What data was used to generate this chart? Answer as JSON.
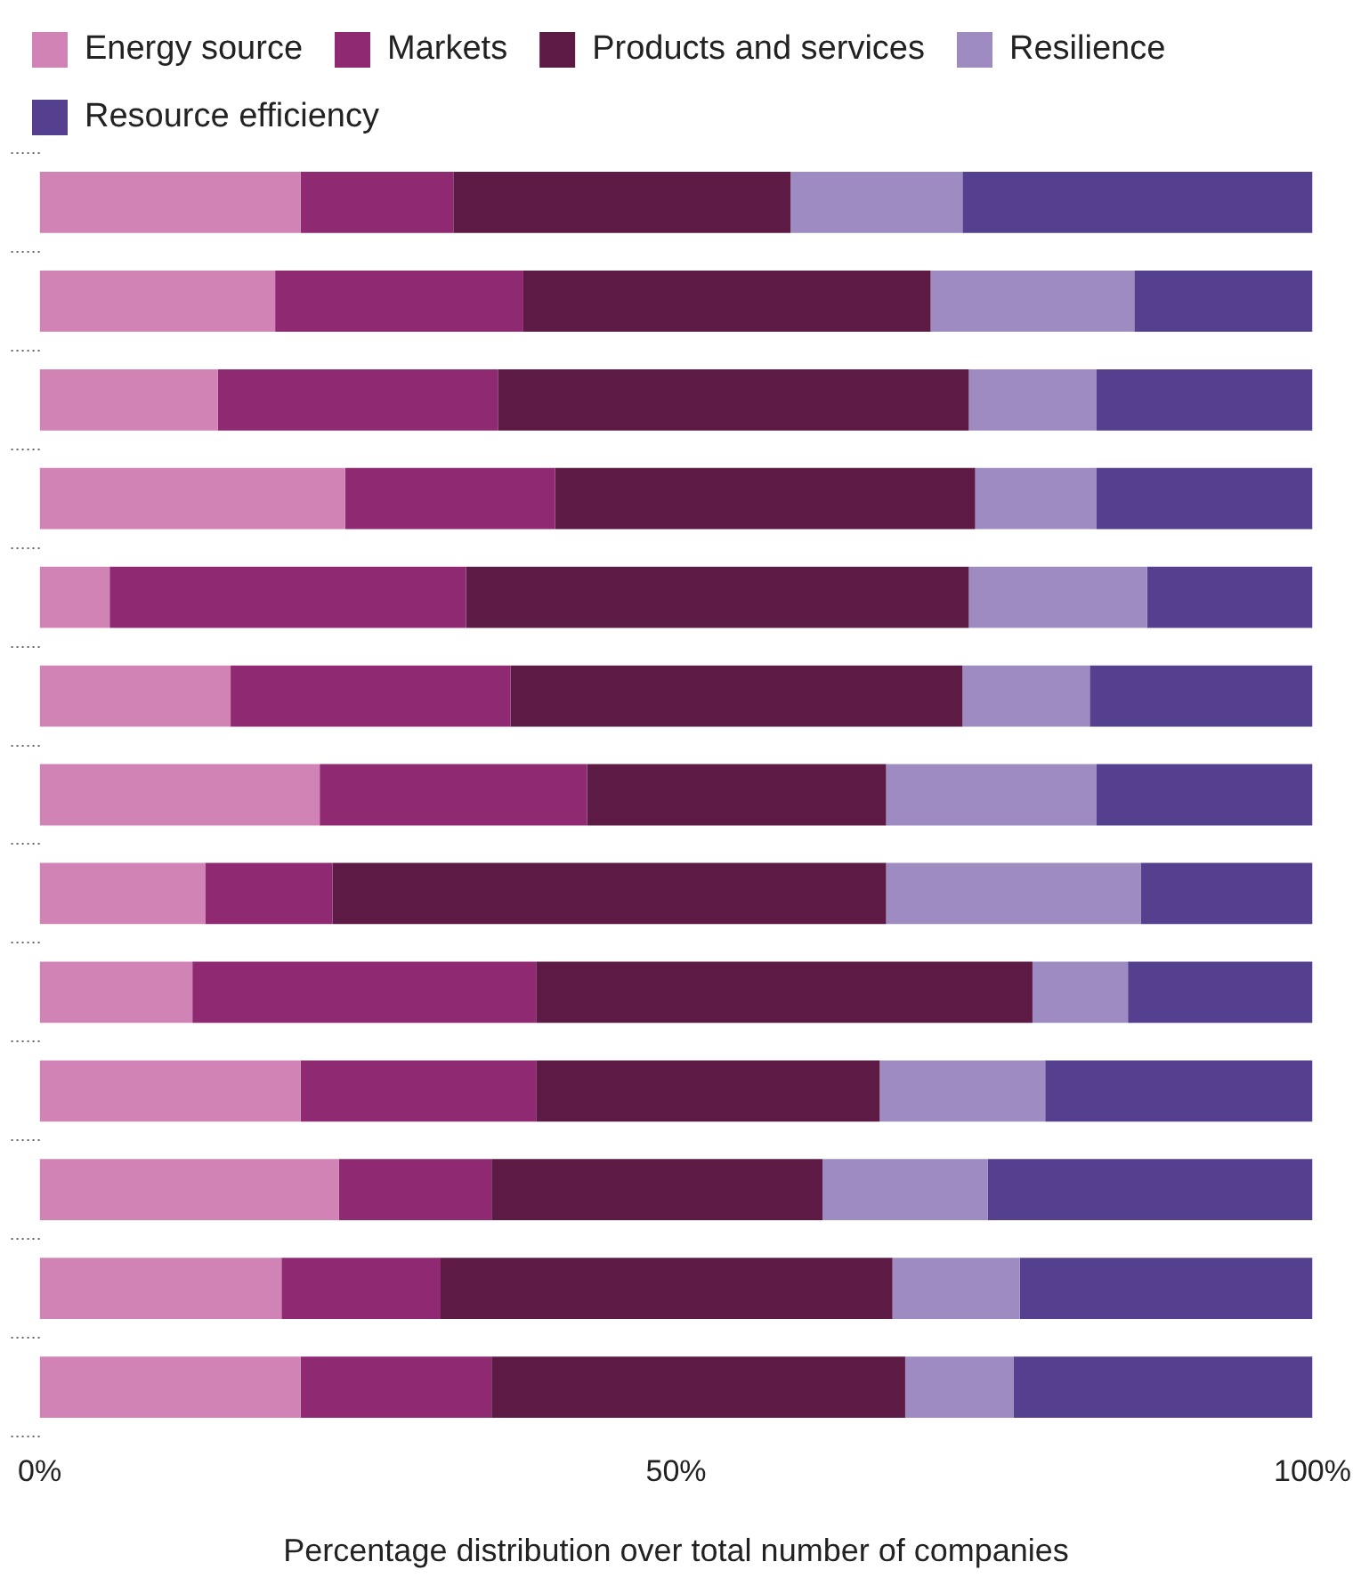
{
  "chart_data": {
    "type": "bar",
    "orientation": "horizontal",
    "stacked": true,
    "categories": [
      null,
      null,
      null,
      null,
      null,
      null,
      null,
      null,
      null,
      null,
      null,
      null,
      null
    ],
    "series": [
      {
        "name": "Energy source",
        "color": "#d083b4",
        "values": [
          20.5,
          18.5,
          14,
          24,
          5.5,
          15,
          22,
          13,
          12,
          20.5,
          23.5,
          19,
          20.5
        ]
      },
      {
        "name": "Markets",
        "color": "#8f2a72",
        "values": [
          12,
          19.5,
          22,
          16.5,
          28,
          22,
          21,
          10,
          27,
          18.5,
          12,
          12.5,
          15
        ]
      },
      {
        "name": "Products and services",
        "color": "#5c1a45",
        "values": [
          26.5,
          32,
          37,
          33,
          39.5,
          35.5,
          23.5,
          43.5,
          39,
          27,
          26,
          35.5,
          32.5
        ]
      },
      {
        "name": "Resilience",
        "color": "#9e8bc1",
        "values": [
          13.5,
          16,
          10,
          9.5,
          14,
          10,
          16.5,
          20,
          7.5,
          13,
          13,
          10,
          8.5
        ]
      },
      {
        "name": "Resource efficiency",
        "color": "#553f8f",
        "values": [
          27.5,
          14,
          17,
          17,
          13,
          17.5,
          17,
          13.5,
          14.5,
          21,
          25.5,
          23,
          23.5
        ]
      }
    ],
    "xlim": [
      0,
      100
    ],
    "xticks": [
      {
        "value": 0,
        "label": "0%"
      },
      {
        "value": 50,
        "label": "50%"
      },
      {
        "value": 100,
        "label": "100%"
      }
    ],
    "xlabel": "Percentage distribution over total number of companies",
    "grid": false,
    "legend": "top left"
  }
}
